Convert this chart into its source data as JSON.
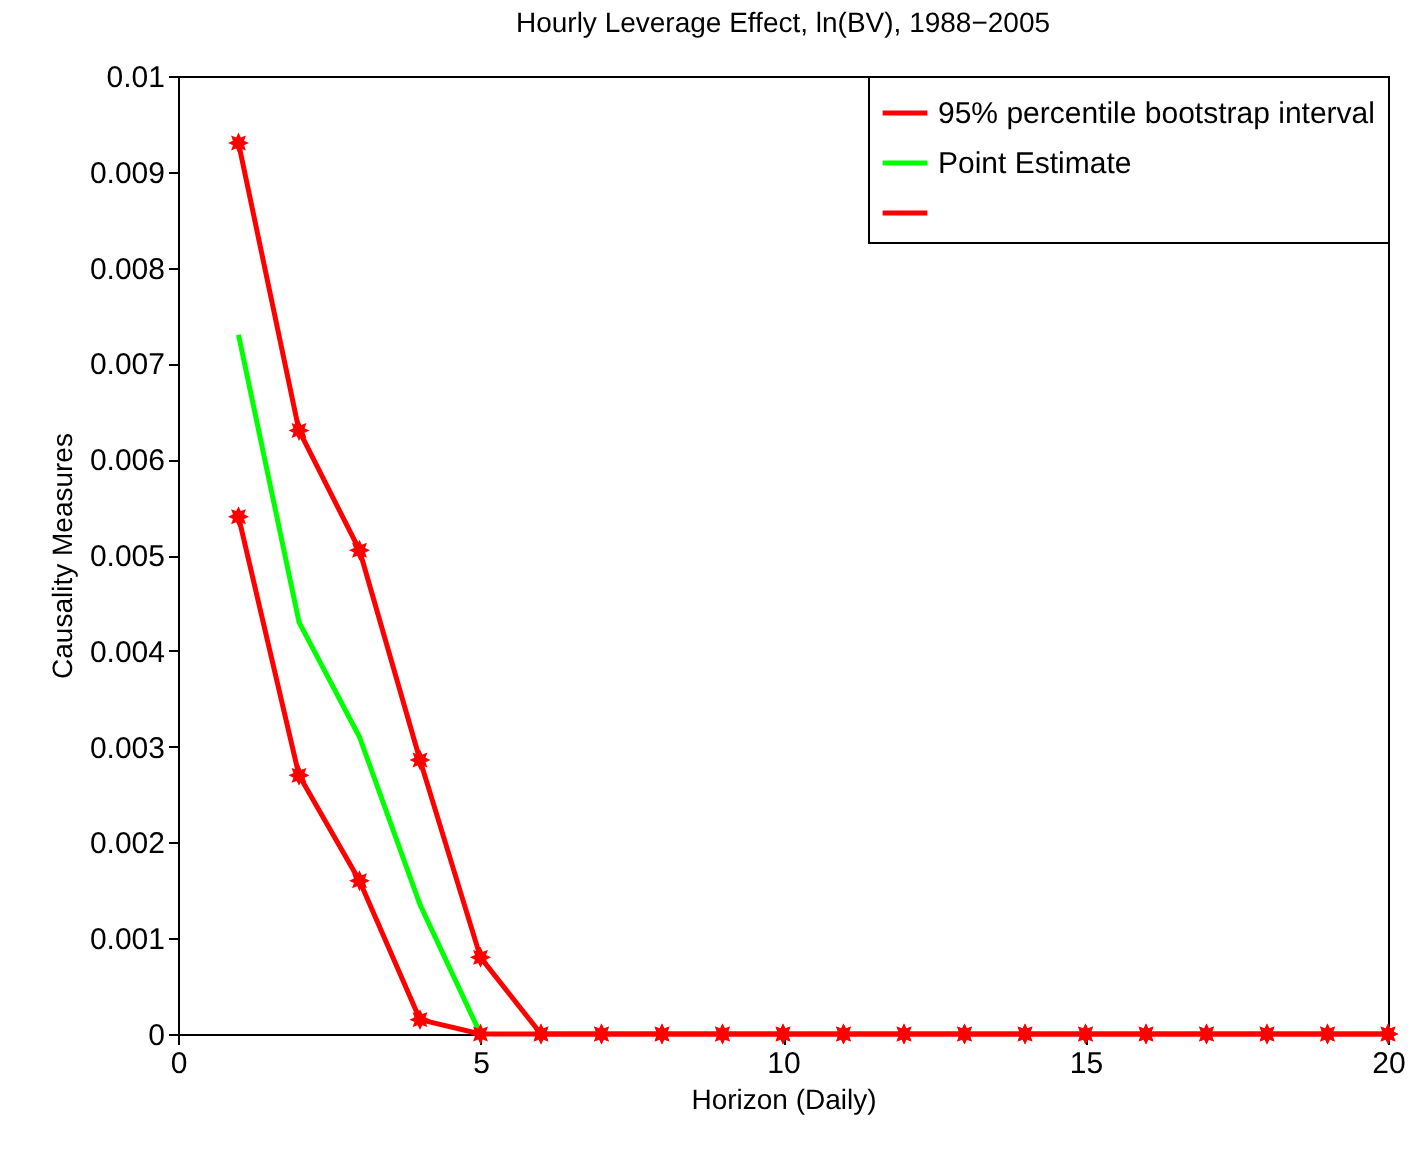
{
  "chart_data": {
    "type": "line",
    "title": "Hourly Leverage Effect, ln(BV), 1988−2005",
    "xlabel": "Horizon (Daily)",
    "ylabel": "Causality Measures",
    "x": [
      1,
      2,
      3,
      4,
      5,
      6,
      7,
      8,
      9,
      10,
      11,
      12,
      13,
      14,
      15,
      16,
      17,
      18,
      19,
      20
    ],
    "series": [
      {
        "name": "95% percentile bootstrap interval",
        "color": "#ff0000",
        "marker": "star",
        "values": [
          0.0093,
          0.0063,
          0.00505,
          0.00286,
          0.0008,
          0,
          0,
          0,
          0,
          0,
          0,
          0,
          0,
          0,
          0,
          0,
          0,
          0,
          0,
          0
        ]
      },
      {
        "name": "Point Estimate",
        "color": "#00ff00",
        "marker": "none",
        "values": [
          0.0073,
          0.0043,
          0.0031,
          0.00135,
          0,
          null,
          null,
          null,
          null,
          null,
          null,
          null,
          null,
          null,
          null,
          null,
          null,
          null,
          null,
          null
        ]
      },
      {
        "color": "#ff0000",
        "marker": "star",
        "values": [
          0.0054,
          0.0027,
          0.0016,
          0.00015,
          0,
          0,
          0,
          0,
          0,
          0,
          0,
          0,
          0,
          0,
          0,
          0,
          0,
          0,
          0,
          0
        ]
      }
    ],
    "xlim": [
      0,
      20
    ],
    "xticks": [
      0,
      5,
      10,
      15,
      20
    ],
    "ylim": [
      0,
      0.01
    ],
    "yticks": [
      0,
      0.001,
      0.002,
      0.003,
      0.004,
      0.005,
      0.006,
      0.007,
      0.008,
      0.009,
      0.01
    ],
    "legend": "top right",
    "grid": false,
    "line_style": "solid"
  }
}
